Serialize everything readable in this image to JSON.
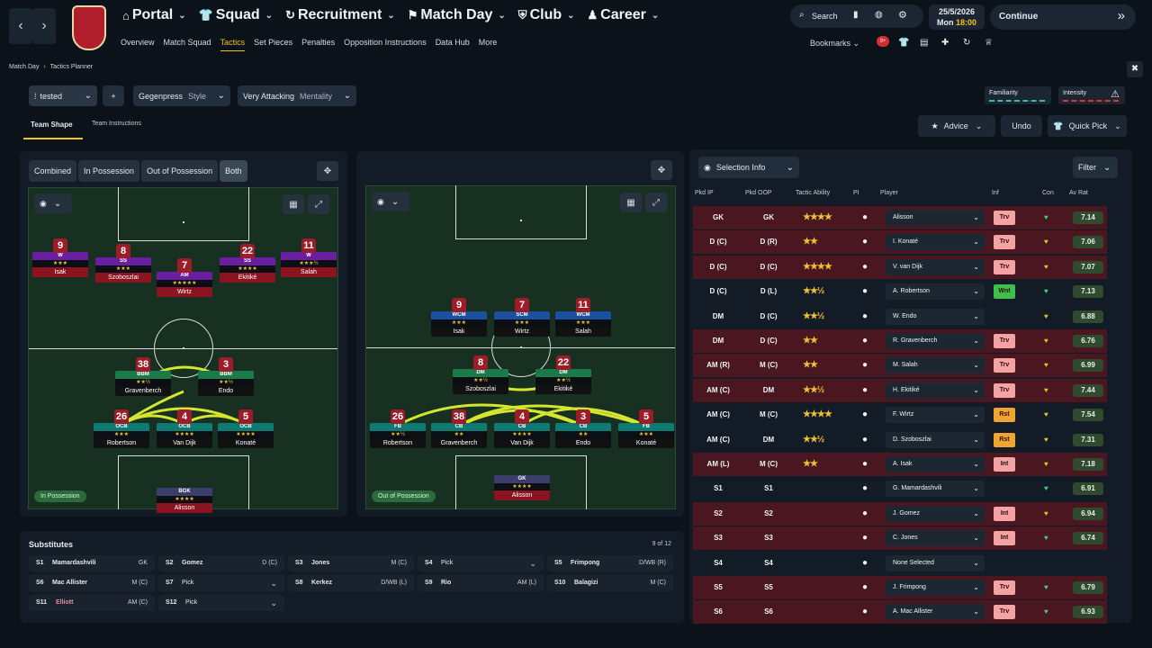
{
  "nav": {
    "top": [
      "Portal",
      "Squad",
      "Recruitment",
      "Match Day",
      "Club",
      "Career"
    ],
    "sub": [
      "Overview",
      "Match Squad",
      "Tactics",
      "Set Pieces",
      "Penalties",
      "Opposition Instructions",
      "Data Hub",
      "More"
    ],
    "search": "Search",
    "date": "25/5/2026",
    "day": "Mon",
    "time": "18:00",
    "continue": "Continue",
    "bookmarks": "Bookmarks",
    "badge_count": "9+"
  },
  "breadcrumb": [
    "Match Day",
    "Tactics Planner"
  ],
  "toolbar": {
    "tactic_name": "tested",
    "add": "+",
    "style_value": "Gegenpress",
    "style_label": "Style",
    "mentality_value": "Very Attacking",
    "mentality_label": "Mentality",
    "familiarity": "Familiarity",
    "intensity": "Intensity",
    "advice": "Advice",
    "undo": "Undo",
    "quick_pick": "Quick Pick"
  },
  "tabs": {
    "shape": "Team Shape",
    "instructions": "Team Instructions"
  },
  "view_tabs": [
    "Combined",
    "In Possession",
    "Out of Possession",
    "Both"
  ],
  "pitch_labels": {
    "in": "In Possession",
    "out": "Out of Possession"
  },
  "in_possession": [
    {
      "num": "9",
      "role": "W",
      "stars": "★★★",
      "name": "Isak",
      "c": "#6a1fa0"
    },
    {
      "num": "8",
      "role": "SS",
      "stars": "★★★",
      "name": "Szoboszlai",
      "c": "#6a1fa0"
    },
    {
      "num": "7",
      "role": "AM",
      "stars": "★★★★★",
      "name": "Wirtz",
      "c": "#6a1fa0"
    },
    {
      "num": "22",
      "role": "SS",
      "stars": "★★★★",
      "name": "Ekitiké",
      "c": "#6a1fa0"
    },
    {
      "num": "11",
      "role": "W",
      "stars": "★★★½",
      "name": "Salah",
      "c": "#6a1fa0"
    },
    {
      "num": "38",
      "role": "BBM",
      "stars": "★★½",
      "name": "Gravenberch",
      "c": "#1a7a4a"
    },
    {
      "num": "3",
      "role": "BBM",
      "stars": "★★½",
      "name": "Endo",
      "c": "#1a7a4a"
    },
    {
      "num": "26",
      "role": "OCB",
      "stars": "★★★",
      "name": "Robertson",
      "c": "#0f7a72"
    },
    {
      "num": "4",
      "role": "OCB",
      "stars": "★★★★",
      "name": "Van Dijk",
      "c": "#0f7a72"
    },
    {
      "num": "5",
      "role": "OCB",
      "stars": "★★★★",
      "name": "Konaté",
      "c": "#0f7a72"
    },
    {
      "num": "",
      "role": "BGK",
      "stars": "★★★★",
      "name": "Alisson",
      "c": "#3b3d6a"
    }
  ],
  "out_possession": [
    {
      "num": "9",
      "role": "WCM",
      "stars": "★★★",
      "name": "Isak",
      "c": "#1b4fa0"
    },
    {
      "num": "7",
      "role": "SCM",
      "stars": "★★★",
      "name": "Wirtz",
      "c": "#1b4fa0"
    },
    {
      "num": "11",
      "role": "WCM",
      "stars": "★★★",
      "name": "Salah",
      "c": "#1b4fa0"
    },
    {
      "num": "8",
      "role": "DM",
      "stars": "★★½",
      "name": "Szoboszlai",
      "c": "#1a7a4a"
    },
    {
      "num": "22",
      "role": "DM",
      "stars": "★★½",
      "name": "Ekitiké",
      "c": "#1a7a4a"
    },
    {
      "num": "26",
      "role": "FB",
      "stars": "★★½",
      "name": "Robertson",
      "c": "#0f7a72"
    },
    {
      "num": "38",
      "role": "CB",
      "stars": "★★",
      "name": "Gravenberch",
      "c": "#0f7a72"
    },
    {
      "num": "4",
      "role": "CB",
      "stars": "★★★★",
      "name": "Van Dijk",
      "c": "#0f7a72"
    },
    {
      "num": "3",
      "role": "CB",
      "stars": "★★",
      "name": "Endo",
      "c": "#0f7a72"
    },
    {
      "num": "5",
      "role": "FB",
      "stars": "★★★",
      "name": "Konaté",
      "c": "#0f7a72"
    },
    {
      "num": "",
      "role": "GK",
      "stars": "★★★★",
      "name": "Alisson",
      "c": "#3b3d6a"
    }
  ],
  "substitutes": {
    "title": "Substitutes",
    "count": "9 of 12",
    "list": [
      {
        "slot": "S1",
        "name": "Mamardashvili",
        "pos": "GK"
      },
      {
        "slot": "S2",
        "name": "Gomez",
        "pos": "D (C)"
      },
      {
        "slot": "S3",
        "name": "Jones",
        "pos": "M (C)"
      },
      {
        "slot": "S4",
        "name": "Pick",
        "pos": ""
      },
      {
        "slot": "S5",
        "name": "Frimpong",
        "pos": "D/WB (R)"
      },
      {
        "slot": "S6",
        "name": "Mac Allister",
        "pos": "M (C)"
      },
      {
        "slot": "S7",
        "name": "Pick",
        "pos": ""
      },
      {
        "slot": "S8",
        "name": "Kerkez",
        "pos": "D/WB (L)"
      },
      {
        "slot": "S9",
        "name": "Rio",
        "pos": "AM (L)"
      },
      {
        "slot": "S10",
        "name": "Balagizi",
        "pos": "M (C)"
      },
      {
        "slot": "S11",
        "name": "Elliott",
        "pos": "AM (C)"
      },
      {
        "slot": "S12",
        "name": "Pick",
        "pos": ""
      }
    ]
  },
  "selection": {
    "title": "Selection Info",
    "filter": "Filter",
    "headers": [
      "Pkd IP",
      "Pkd OOP",
      "Tactic Ability",
      "PI",
      "Player",
      "Inf",
      "Con",
      "Av Rat"
    ],
    "rows": [
      {
        "ip": "GK",
        "oop": "GK",
        "stars": "★★★★",
        "player": "Alisson",
        "inf": "Trv",
        "rat": "7.14",
        "hi": true,
        "heart": "#4bd16b"
      },
      {
        "ip": "D (C)",
        "oop": "D (R)",
        "stars": "★★",
        "player": "I. Konaté",
        "inf": "Trv",
        "rat": "7.06",
        "hi": true,
        "heart": "#e0c52a"
      },
      {
        "ip": "D (C)",
        "oop": "D (C)",
        "stars": "★★★★",
        "player": "V. van Dijk",
        "inf": "Trv",
        "rat": "7.07",
        "hi": true,
        "heart": "#e0c52a"
      },
      {
        "ip": "D (C)",
        "oop": "D (L)",
        "stars": "★★½",
        "player": "A. Robertson",
        "inf": "Wnt",
        "rat": "7.13",
        "hi": false,
        "heart": "#4bd16b"
      },
      {
        "ip": "DM",
        "oop": "D (C)",
        "stars": "★★½",
        "player": "W. Endo",
        "inf": "",
        "rat": "6.88",
        "hi": false,
        "heart": "#e0c52a"
      },
      {
        "ip": "DM",
        "oop": "D (C)",
        "stars": "★★",
        "player": "R. Gravenberch",
        "inf": "Trv",
        "rat": "6.76",
        "hi": true,
        "heart": "#e0c52a"
      },
      {
        "ip": "AM (R)",
        "oop": "M (C)",
        "stars": "★★",
        "player": "M. Salah",
        "inf": "Trv",
        "rat": "6.99",
        "hi": true,
        "heart": "#e0c52a"
      },
      {
        "ip": "AM (C)",
        "oop": "DM",
        "stars": "★★½",
        "player": "H. Ekitiké",
        "inf": "Trv",
        "rat": "7.44",
        "hi": true,
        "heart": "#e0c52a"
      },
      {
        "ip": "AM (C)",
        "oop": "M (C)",
        "stars": "★★★★",
        "player": "F. Wirtz",
        "inf": "Rst",
        "rat": "7.54",
        "hi": false,
        "heart": "#e0c52a"
      },
      {
        "ip": "AM (C)",
        "oop": "DM",
        "stars": "★★½",
        "player": "D. Szoboszlai",
        "inf": "Rst",
        "rat": "7.31",
        "hi": false,
        "heart": "#e0c52a"
      },
      {
        "ip": "AM (L)",
        "oop": "M (C)",
        "stars": "★★",
        "player": "A. Isak",
        "inf": "Int",
        "rat": "7.18",
        "hi": true,
        "heart": "#e0c52a"
      },
      {
        "ip": "S1",
        "oop": "S1",
        "stars": "",
        "player": "G. Mamardashvili",
        "inf": "",
        "rat": "6.91",
        "hi": false,
        "heart": "#4bd16b"
      },
      {
        "ip": "S2",
        "oop": "S2",
        "stars": "",
        "player": "J. Gomez",
        "inf": "Int",
        "rat": "6.94",
        "hi": true,
        "heart": "#e0c52a"
      },
      {
        "ip": "S3",
        "oop": "S3",
        "stars": "",
        "player": "C. Jones",
        "inf": "Int",
        "rat": "6.74",
        "hi": true,
        "heart": "#4bd16b"
      },
      {
        "ip": "S4",
        "oop": "S4",
        "stars": "",
        "player": "None Selected",
        "inf": "",
        "rat": "",
        "hi": false,
        "heart": ""
      },
      {
        "ip": "S5",
        "oop": "S5",
        "stars": "",
        "player": "J. Frimpong",
        "inf": "Trv",
        "rat": "6.79",
        "hi": true,
        "heart": "#4bd16b"
      },
      {
        "ip": "S6",
        "oop": "S6",
        "stars": "",
        "player": "A. Mac Allister",
        "inf": "Trv",
        "rat": "6.93",
        "hi": true,
        "heart": "#4bd16b"
      }
    ]
  },
  "colors": {
    "accent": "#f0c419",
    "row_hi": "#4a1620",
    "inf_trv": "#f3a3a3",
    "inf_rst": "#f0a531",
    "inf_wnt": "#3fbf4a"
  }
}
